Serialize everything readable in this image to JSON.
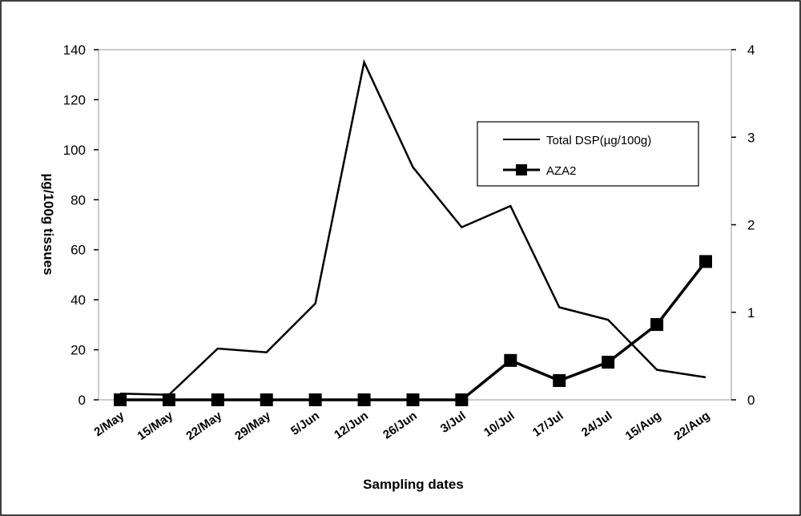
{
  "chart_data": {
    "type": "line",
    "xlabel": "Sampling dates",
    "ylabel": "µg/100g tissues",
    "categories": [
      "2/May",
      "15/May",
      "22/May",
      "29/May",
      "5/Jun",
      "12/Jun",
      "26/Jun",
      "3/Jul",
      "10/Jul",
      "17/Jul",
      "24/Jul",
      "15/Aug",
      "22/Aug"
    ],
    "ylim": [
      0,
      140
    ],
    "yticks": [
      0,
      20,
      40,
      60,
      80,
      100,
      120,
      140
    ],
    "y2lim": [
      0,
      4
    ],
    "y2ticks": [
      0,
      1,
      2,
      3,
      4
    ],
    "grid": false,
    "legend_placement": "top-right",
    "series": [
      {
        "name": "Total DSP(µg/100g)",
        "axis": "left",
        "marker": "none",
        "values": [
          2.5,
          2,
          20.5,
          19,
          38.5,
          135,
          93,
          69,
          77.5,
          37,
          32,
          12,
          9
        ]
      },
      {
        "name": "AZA2",
        "axis": "right",
        "marker": "square",
        "values": [
          0,
          0,
          0,
          0,
          0,
          0,
          0,
          0,
          0.45,
          0.22,
          0.43,
          0.86,
          1.58
        ]
      }
    ]
  }
}
